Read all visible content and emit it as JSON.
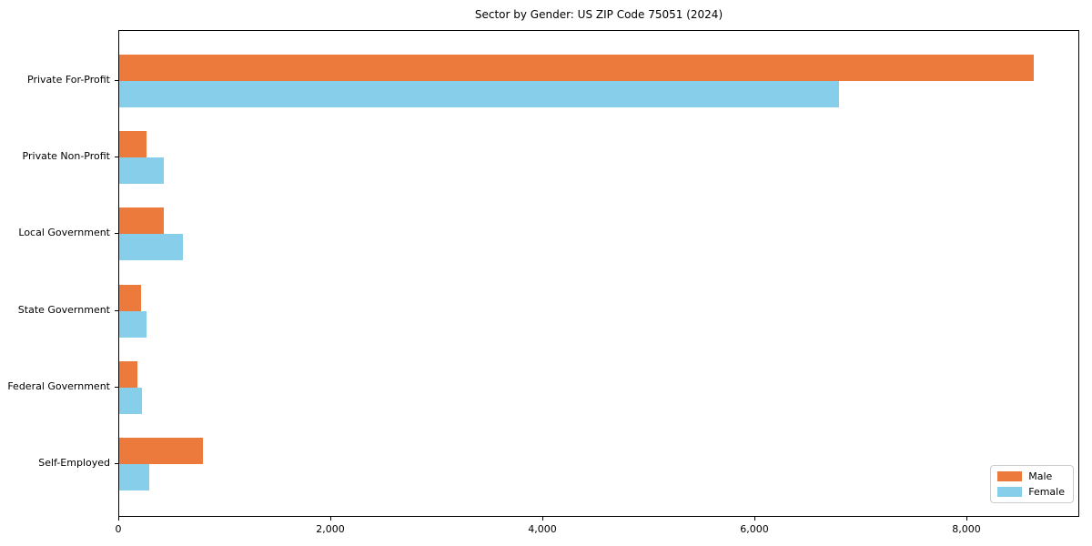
{
  "chart_data": {
    "type": "bar",
    "orientation": "horizontal",
    "title": "Sector by Gender: US ZIP Code 75051 (2024)",
    "categories": [
      "Private For-Profit",
      "Private Non-Profit",
      "Local Government",
      "State Government",
      "Federal Government",
      "Self-Employed"
    ],
    "series": [
      {
        "name": "Male",
        "color": "#ec7a3c",
        "values": [
          8630,
          260,
          420,
          205,
          170,
          790
        ]
      },
      {
        "name": "Female",
        "color": "#87ceeb",
        "values": [
          6790,
          420,
          600,
          260,
          215,
          285
        ]
      }
    ],
    "xlabel": "",
    "ylabel": "",
    "xlim": [
      0,
      9060
    ],
    "xticks": [
      0,
      2000,
      4000,
      6000,
      8000
    ],
    "xtick_labels": [
      "0",
      "2,000",
      "4,000",
      "6,000",
      "8,000"
    ],
    "grid": false,
    "legend": {
      "position": "lower right"
    },
    "colors": {
      "male": "#ec7a3c",
      "female": "#87ceeb",
      "spine": "#000000",
      "legend_border": "#cccccc"
    }
  }
}
